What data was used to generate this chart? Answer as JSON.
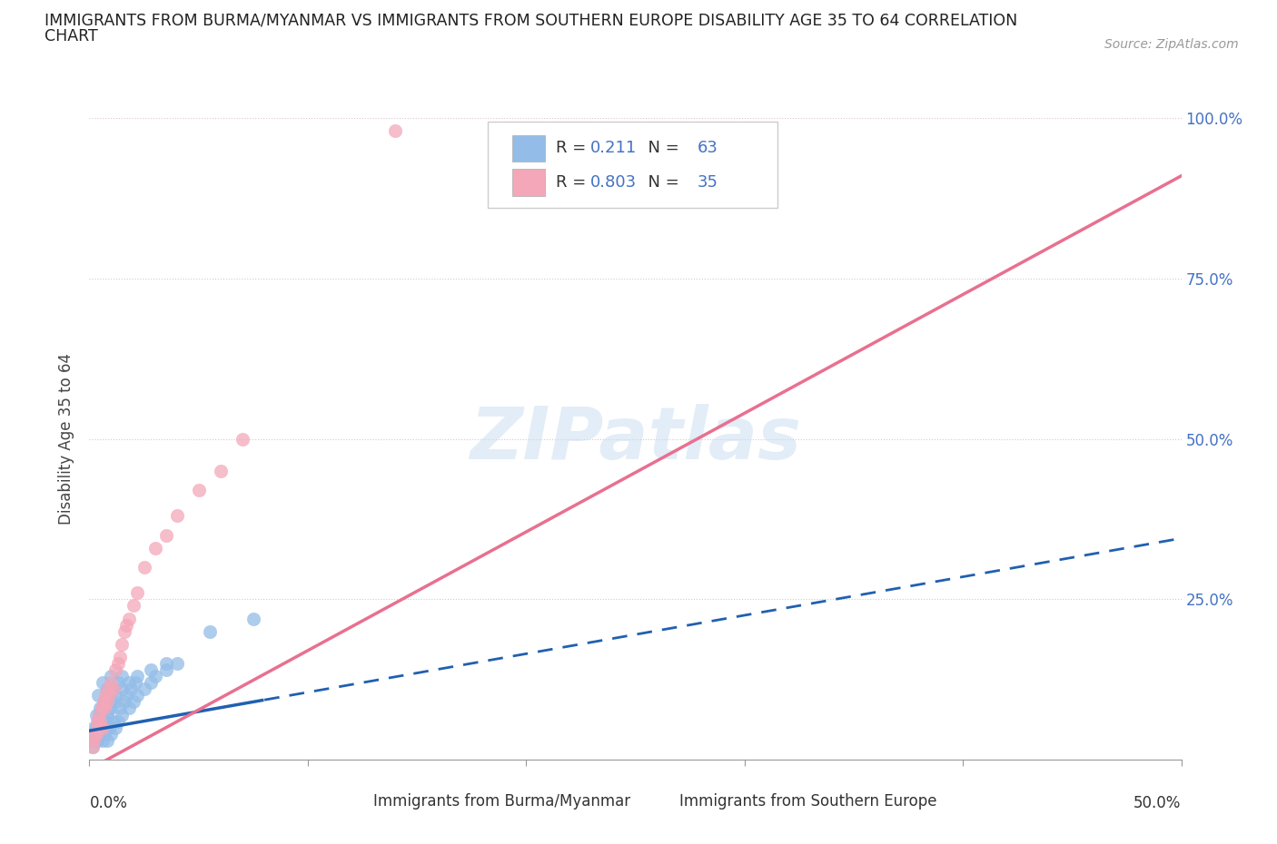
{
  "title_line1": "IMMIGRANTS FROM BURMA/MYANMAR VS IMMIGRANTS FROM SOUTHERN EUROPE DISABILITY AGE 35 TO 64 CORRELATION",
  "title_line2": "CHART",
  "source": "Source: ZipAtlas.com",
  "ylabel": "Disability Age 35 to 64",
  "blue_R": 0.211,
  "blue_N": 63,
  "pink_R": 0.803,
  "pink_N": 35,
  "blue_color": "#93BDE8",
  "pink_color": "#F4A7B9",
  "blue_line_color": "#2060B0",
  "pink_line_color": "#E87090",
  "legend_blue_label": "Immigrants from Burma/Myanmar",
  "legend_pink_label": "Immigrants from Southern Europe",
  "watermark": "ZIPatlas",
  "background_color": "#ffffff",
  "xlim": [
    0,
    50
  ],
  "ylim": [
    0,
    100
  ],
  "blue_x": [
    0.2,
    0.3,
    0.3,
    0.4,
    0.4,
    0.5,
    0.5,
    0.6,
    0.6,
    0.6,
    0.7,
    0.7,
    0.8,
    0.8,
    0.8,
    0.9,
    0.9,
    1.0,
    1.0,
    1.0,
    1.1,
    1.1,
    1.2,
    1.2,
    1.3,
    1.3,
    1.4,
    1.5,
    1.5,
    1.6,
    1.7,
    1.8,
    1.9,
    2.0,
    2.1,
    2.2,
    2.5,
    2.8,
    3.0,
    3.5,
    4.0,
    0.15,
    0.2,
    0.25,
    0.3,
    0.35,
    0.4,
    0.45,
    0.5,
    0.55,
    0.6,
    0.7,
    0.8,
    0.9,
    1.0,
    1.2,
    1.5,
    1.8,
    2.2,
    2.8,
    3.5,
    5.5,
    7.5
  ],
  "blue_y": [
    5.0,
    3.0,
    7.0,
    5.0,
    10.0,
    4.0,
    8.0,
    3.0,
    6.0,
    12.0,
    4.0,
    9.0,
    3.0,
    7.0,
    11.0,
    5.0,
    10.0,
    4.0,
    8.0,
    13.0,
    6.0,
    11.0,
    5.0,
    9.0,
    6.0,
    12.0,
    8.0,
    7.0,
    13.0,
    9.0,
    10.0,
    8.0,
    11.0,
    9.0,
    12.0,
    10.0,
    11.0,
    12.0,
    13.0,
    14.0,
    15.0,
    2.0,
    3.0,
    4.0,
    5.0,
    3.0,
    6.0,
    4.0,
    7.0,
    5.0,
    8.0,
    6.0,
    7.0,
    8.0,
    9.0,
    10.0,
    11.0,
    12.0,
    13.0,
    14.0,
    15.0,
    20.0,
    22.0
  ],
  "pink_x": [
    0.15,
    0.2,
    0.3,
    0.4,
    0.5,
    0.6,
    0.7,
    0.8,
    0.9,
    1.0,
    1.1,
    1.2,
    1.4,
    1.5,
    1.6,
    1.8,
    2.0,
    2.2,
    2.5,
    3.0,
    3.5,
    4.0,
    5.0,
    6.0,
    0.25,
    0.35,
    0.45,
    0.55,
    0.65,
    0.75,
    0.85,
    1.3,
    1.7,
    7.0,
    14.0
  ],
  "pink_y": [
    2.0,
    3.0,
    4.0,
    5.0,
    6.0,
    5.0,
    8.0,
    9.0,
    10.0,
    12.0,
    11.0,
    14.0,
    16.0,
    18.0,
    20.0,
    22.0,
    24.0,
    26.0,
    30.0,
    33.0,
    35.0,
    38.0,
    42.0,
    45.0,
    4.0,
    6.0,
    7.0,
    8.0,
    9.0,
    10.0,
    11.0,
    15.0,
    21.0,
    50.0,
    98.0
  ],
  "pink_line_slope": 1.85,
  "pink_line_intercept": -1.5,
  "blue_line_slope": 0.6,
  "blue_line_intercept": 4.5
}
